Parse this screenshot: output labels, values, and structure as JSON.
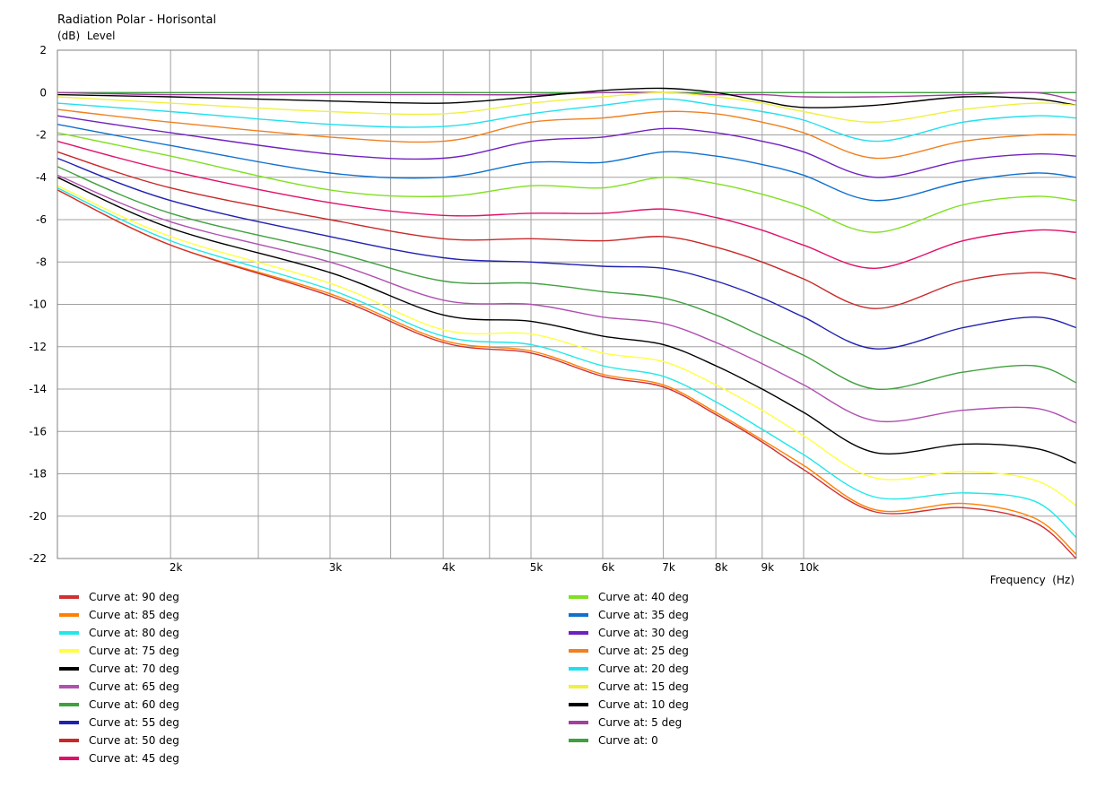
{
  "chart_data": {
    "type": "line",
    "title": "Radiation Polar - Horisontal",
    "ylabel": "(dB)  Level",
    "xlabel": "Frequency  (Hz)",
    "x_scale": "log",
    "xlim": [
      1500,
      20000
    ],
    "ylim": [
      -22,
      2
    ],
    "x_ticks": [
      {
        "value": 2000,
        "label": "2k"
      },
      {
        "value": 3000,
        "label": "3k"
      },
      {
        "value": 4000,
        "label": "4k"
      },
      {
        "value": 5000,
        "label": "5k"
      },
      {
        "value": 6000,
        "label": "6k"
      },
      {
        "value": 7000,
        "label": "7k"
      },
      {
        "value": 8000,
        "label": "8k"
      },
      {
        "value": 9000,
        "label": "9k"
      },
      {
        "value": 10000,
        "label": "10k"
      }
    ],
    "x_gridlines": [
      2000,
      2500,
      3000,
      3500,
      4000,
      4500,
      5000,
      6000,
      7000,
      8000,
      9000,
      10000,
      15000
    ],
    "y_ticks": [
      2,
      0,
      -2,
      -4,
      -6,
      -8,
      -10,
      -12,
      -14,
      -16,
      -18,
      -20,
      -22
    ],
    "grid": true,
    "legend_position": "bottom",
    "x": [
      1500,
      2000,
      3000,
      4000,
      5000,
      6000,
      7000,
      8000,
      9000,
      10000,
      12000,
      15000,
      18000,
      20000
    ],
    "series": [
      {
        "name": "Curve at: 90 deg",
        "color": "#d03030",
        "values": [
          -4.6,
          -7.2,
          -9.6,
          -11.8,
          -12.3,
          -13.4,
          -13.9,
          -15.2,
          -16.5,
          -17.8,
          -19.8,
          -19.6,
          -20.3,
          -22.0
        ]
      },
      {
        "name": "Curve at: 85 deg",
        "color": "#ff8000",
        "values": [
          -4.6,
          -7.2,
          -9.5,
          -11.7,
          -12.2,
          -13.3,
          -13.8,
          -15.1,
          -16.4,
          -17.6,
          -19.7,
          -19.4,
          -20.1,
          -21.8
        ]
      },
      {
        "name": "Curve at: 80 deg",
        "color": "#20e8e8",
        "values": [
          -4.5,
          -7.0,
          -9.3,
          -11.5,
          -11.9,
          -12.9,
          -13.4,
          -14.6,
          -15.9,
          -17.1,
          -19.1,
          -18.9,
          -19.3,
          -21.0
        ]
      },
      {
        "name": "Curve at: 75 deg",
        "color": "#ffff40",
        "values": [
          -4.4,
          -6.8,
          -9.0,
          -11.2,
          -11.4,
          -12.3,
          -12.7,
          -13.8,
          -15.0,
          -16.2,
          -18.2,
          -17.9,
          -18.3,
          -19.5
        ]
      },
      {
        "name": "Curve at: 70 deg",
        "color": "#000000",
        "values": [
          -4.0,
          -6.4,
          -8.5,
          -10.5,
          -10.8,
          -11.5,
          -11.9,
          -12.9,
          -14.0,
          -15.1,
          -17.0,
          -16.6,
          -16.8,
          -17.5
        ]
      },
      {
        "name": "Curve at: 65 deg",
        "color": "#b050b0",
        "values": [
          -3.9,
          -6.1,
          -8.0,
          -9.8,
          -10.0,
          -10.6,
          -10.9,
          -11.8,
          -12.8,
          -13.8,
          -15.5,
          -15.0,
          -14.9,
          -15.6
        ]
      },
      {
        "name": "Curve at: 60 deg",
        "color": "#40a040",
        "values": [
          -3.5,
          -5.7,
          -7.5,
          -8.9,
          -9.0,
          -9.4,
          -9.7,
          -10.5,
          -11.5,
          -12.4,
          -14.0,
          -13.2,
          -12.9,
          -13.7
        ]
      },
      {
        "name": "Curve at: 55 deg",
        "color": "#2020b0",
        "values": [
          -3.1,
          -5.1,
          -6.8,
          -7.8,
          -8.0,
          -8.2,
          -8.3,
          -8.9,
          -9.7,
          -10.6,
          -12.1,
          -11.1,
          -10.6,
          -11.1
        ]
      },
      {
        "name": "Curve at: 50 deg",
        "color": "#c82828",
        "values": [
          -2.8,
          -4.5,
          -6.0,
          -6.9,
          -6.9,
          -7.0,
          -6.8,
          -7.3,
          -8.0,
          -8.8,
          -10.2,
          -8.9,
          -8.5,
          -8.8
        ]
      },
      {
        "name": "Curve at: 45 deg",
        "color": "#e0106a",
        "values": [
          -2.3,
          -3.7,
          -5.2,
          -5.8,
          -5.7,
          -5.7,
          -5.5,
          -5.9,
          -6.5,
          -7.2,
          -8.3,
          -7.0,
          -6.5,
          -6.6
        ]
      },
      {
        "name": "Curve at: 40 deg",
        "color": "#80e020",
        "values": [
          -1.9,
          -3.0,
          -4.6,
          -4.9,
          -4.4,
          -4.5,
          -4.0,
          -4.3,
          -4.8,
          -5.4,
          -6.6,
          -5.3,
          -4.9,
          -5.1
        ]
      },
      {
        "name": "Curve at: 35 deg",
        "color": "#1070d0",
        "values": [
          -1.5,
          -2.5,
          -3.8,
          -4.0,
          -3.3,
          -3.3,
          -2.8,
          -3.0,
          -3.4,
          -3.9,
          -5.1,
          -4.2,
          -3.8,
          -4.0
        ]
      },
      {
        "name": "Curve at: 30 deg",
        "color": "#7020c0",
        "values": [
          -1.1,
          -1.9,
          -2.9,
          -3.1,
          -2.3,
          -2.1,
          -1.7,
          -1.9,
          -2.3,
          -2.8,
          -4.0,
          -3.2,
          -2.9,
          -3.0
        ]
      },
      {
        "name": "Curve at: 25 deg",
        "color": "#f08020",
        "values": [
          -0.8,
          -1.4,
          -2.1,
          -2.3,
          -1.4,
          -1.2,
          -0.9,
          -1.0,
          -1.4,
          -1.9,
          -3.1,
          -2.3,
          -2.0,
          -2.0
        ]
      },
      {
        "name": "Curve at: 20 deg",
        "color": "#20e0f0",
        "values": [
          -0.5,
          -0.9,
          -1.5,
          -1.6,
          -1.0,
          -0.6,
          -0.3,
          -0.6,
          -0.9,
          -1.3,
          -2.3,
          -1.4,
          -1.1,
          -1.2
        ]
      },
      {
        "name": "Curve at: 15 deg",
        "color": "#f0f040",
        "values": [
          -0.2,
          -0.5,
          -0.9,
          -1.0,
          -0.5,
          -0.2,
          0.0,
          -0.2,
          -0.5,
          -0.9,
          -1.4,
          -0.8,
          -0.5,
          -0.6
        ]
      },
      {
        "name": "Curve at: 10 deg",
        "color": "#000000",
        "values": [
          -0.1,
          -0.2,
          -0.4,
          -0.5,
          -0.2,
          0.1,
          0.2,
          0.0,
          -0.4,
          -0.7,
          -0.6,
          -0.2,
          -0.3,
          -0.6
        ]
      },
      {
        "name": "Curve at: 5 deg",
        "color": "#a040a0",
        "values": [
          0.0,
          -0.1,
          -0.1,
          -0.1,
          -0.1,
          0.0,
          0.0,
          -0.1,
          -0.1,
          -0.2,
          -0.2,
          -0.1,
          0.0,
          -0.4
        ]
      },
      {
        "name": "Curve at: 0",
        "color": "#40a040",
        "values": [
          0.0,
          0.0,
          0.0,
          0.0,
          0.0,
          0.0,
          0.0,
          0.0,
          0.0,
          0.0,
          0.0,
          0.0,
          0.0,
          0.0
        ]
      }
    ]
  }
}
